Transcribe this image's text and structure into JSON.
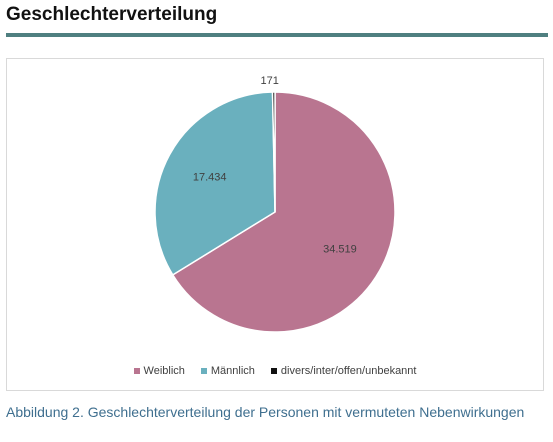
{
  "heading": "Geschlechterverteilung",
  "accent_color": "#4f7f80",
  "caption": "Abbildung 2. Geschlechterverteilung der Personen mit vermuteten Nebenwirkungen",
  "caption_color": "#3f6f8f",
  "chart_data": {
    "type": "pie",
    "title": "",
    "categories": [
      "Weiblich",
      "Männlich",
      "divers/inter/offen/unbekannt"
    ],
    "values": [
      34519,
      17434,
      171
    ],
    "data_labels": [
      "34.519",
      "17.434",
      "171"
    ],
    "colors": [
      "#b97590",
      "#6ab0be",
      "#111111"
    ],
    "legend_position": "bottom",
    "start_angle": "12 o'clock, clockwise"
  }
}
